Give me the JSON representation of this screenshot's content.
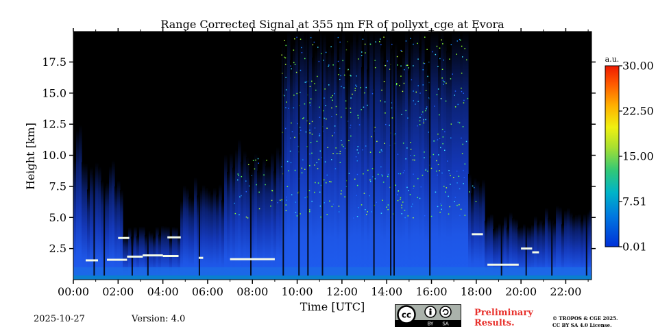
{
  "chart_data": {
    "type": "heatmap",
    "title": "Range Corrected Signal at 355 nm FR of pollyxt_cge at Evora",
    "xlabel": "Time [UTC]",
    "ylabel": "Height [km]",
    "xlim": [
      0,
      23.15
    ],
    "ylim": [
      0,
      19.95
    ],
    "x_ticks": [
      0,
      2,
      4,
      6,
      8,
      10,
      12,
      14,
      16,
      18,
      20,
      22
    ],
    "x_tick_labels": [
      "00:00",
      "02:00",
      "04:00",
      "06:00",
      "08:00",
      "10:00",
      "12:00",
      "14:00",
      "16:00",
      "18:00",
      "20:00",
      "22:00"
    ],
    "y_ticks": [
      2.5,
      5.0,
      7.5,
      10.0,
      12.5,
      15.0,
      17.5
    ],
    "y_tick_labels": [
      "2.5",
      "5.0",
      "7.5",
      "10.0",
      "12.5",
      "15.0",
      "17.5"
    ],
    "colorbar": {
      "unit": "a.u.",
      "range": [
        0.01,
        30.0
      ],
      "tick_values": [
        0.01,
        7.51,
        15.0,
        22.5,
        30.0
      ],
      "tick_labels": [
        "0.01",
        "7.51",
        "15.00",
        "22.50",
        "30.00"
      ]
    },
    "cloud_layers": [
      {
        "start": 0.55,
        "end": 1.1,
        "height": 1.55
      },
      {
        "start": 1.5,
        "end": 2.4,
        "height": 1.6
      },
      {
        "start": 2.4,
        "end": 3.1,
        "height": 1.85
      },
      {
        "start": 3.1,
        "end": 4.0,
        "height": 1.95
      },
      {
        "start": 4.0,
        "end": 4.7,
        "height": 1.9
      },
      {
        "start": 2.0,
        "end": 2.5,
        "height": 3.35
      },
      {
        "start": 4.2,
        "end": 4.8,
        "height": 3.4
      },
      {
        "start": 5.6,
        "end": 5.8,
        "height": 1.75
      },
      {
        "start": 7.0,
        "end": 9.0,
        "height": 1.65
      },
      {
        "start": 17.8,
        "end": 18.3,
        "height": 3.65
      },
      {
        "start": 18.5,
        "end": 19.9,
        "height": 1.2
      },
      {
        "start": 20.0,
        "end": 20.5,
        "height": 2.5
      },
      {
        "start": 20.5,
        "end": 20.8,
        "height": 2.2
      }
    ]
  },
  "footer": {
    "date": "2025-10-27",
    "version": "Version: 4.0",
    "preliminary": [
      "Preliminary",
      "Results."
    ],
    "license": [
      "© TROPOS & CGE 2025.",
      "CC BY SA 4.0 License."
    ],
    "badge": {
      "cc": "cc",
      "by": "BY",
      "sa": "SA"
    }
  }
}
